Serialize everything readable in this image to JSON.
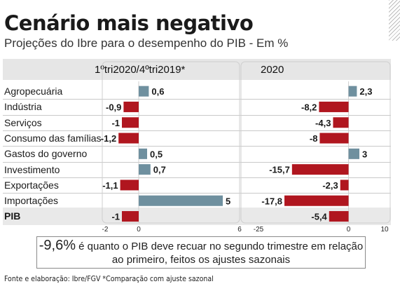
{
  "header": {
    "title": "Cenário mais negativo",
    "subtitle": "Projeções do Ibre para o desempenho do PIB - Em %"
  },
  "colors": {
    "positive": "#6f909f",
    "negative": "#b0161f",
    "pib_band": "#e9e9e9",
    "header_band": "#e6e6e6"
  },
  "chart_data": [
    {
      "type": "bar",
      "orientation": "horizontal",
      "title": "1ºtri2020/4ºtri2019*",
      "categories": [
        "Agropecuária",
        "Indústria",
        "Serviços",
        "Consumo das famílias",
        "Gastos do governo",
        "Investimento",
        "Exportações",
        "Importações",
        "PIB"
      ],
      "values": [
        0.6,
        -0.9,
        -1,
        -1.2,
        0.5,
        0.7,
        -1.1,
        5,
        -1
      ],
      "value_labels": [
        "0,6",
        "-0,9",
        "-1",
        "-1,2",
        "0,5",
        "0,7",
        "-1,1",
        "5",
        "-1"
      ],
      "xlim": [
        -2,
        6
      ],
      "ticks": [
        -2,
        0,
        6
      ],
      "tick_labels": [
        "-2",
        "0",
        "6"
      ]
    },
    {
      "type": "bar",
      "orientation": "horizontal",
      "title": "2020",
      "categories": [
        "Agropecuária",
        "Indústria",
        "Serviços",
        "Consumo das famílias",
        "Gastos do governo",
        "Investimento",
        "Exportações",
        "Importações",
        "PIB"
      ],
      "values": [
        2.3,
        -8.2,
        -4.3,
        -8,
        3,
        -15.7,
        -2.3,
        -17.8,
        -5.4
      ],
      "value_labels": [
        "2,3",
        "-8,2",
        "-4,3",
        "-8",
        "3",
        "-15,7",
        "-2,3",
        "-17,8",
        "-5,4"
      ],
      "xlim": [
        -25,
        10
      ],
      "ticks": [
        -25,
        0,
        10
      ],
      "tick_labels": [
        "-25",
        "0",
        "10"
      ]
    }
  ],
  "callout": {
    "highlight": "-9,6%",
    "line1": " é quanto o PIB deve recuar no segundo trimestre em relação",
    "line2": "ao primeiro, feitos os ajustes sazonais"
  },
  "footer": "Fonte e elaboração: Ibre/FGV *Comparação com ajuste sazonal"
}
